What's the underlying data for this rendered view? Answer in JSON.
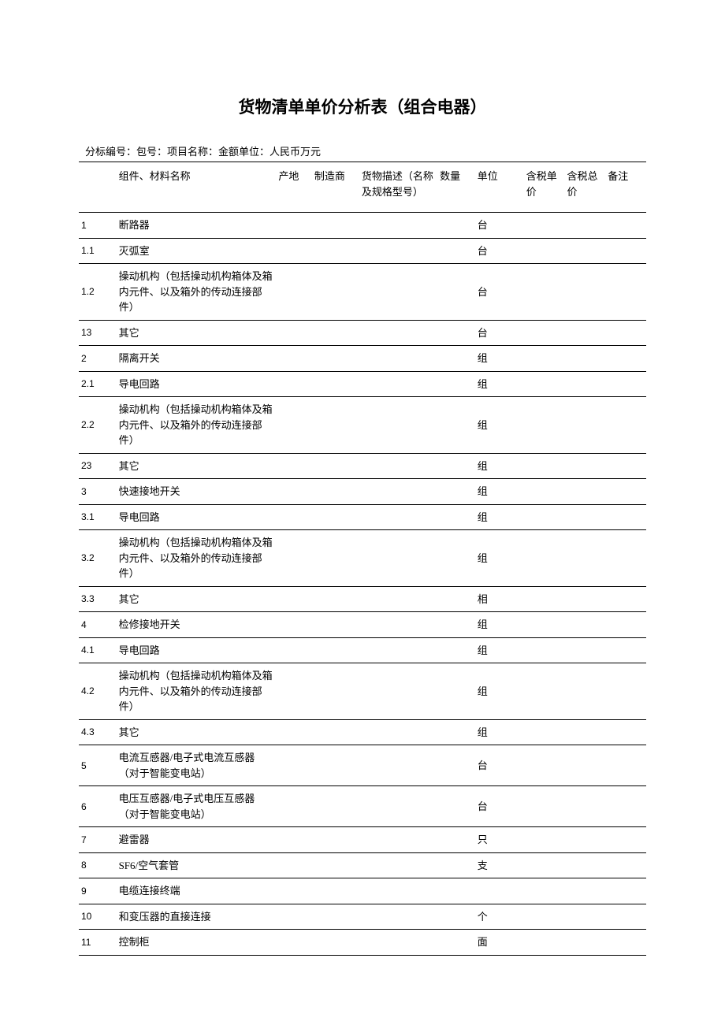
{
  "title": "货物清单单价分析表（组合电器）",
  "subtitle": "分标编号：包号：项目名称：金额单位：人民币万元",
  "columns": [
    "",
    "组件、材料名称",
    "产地",
    "制造商",
    "货物描述（名称及规格型号）",
    "数量",
    "单位",
    "含税单价",
    "含税总价",
    "备注"
  ],
  "rows": [
    {
      "idx": "1",
      "name": "断路器",
      "origin": "",
      "mfr": "",
      "desc": "",
      "qty": "",
      "unit": "台",
      "unitprice": "",
      "totalprice": "",
      "remark": ""
    },
    {
      "idx": "1.1",
      "name": "灭弧室",
      "origin": "",
      "mfr": "",
      "desc": "",
      "qty": "",
      "unit": "台",
      "unitprice": "",
      "totalprice": "",
      "remark": ""
    },
    {
      "idx": "1.2",
      "name": "操动机构（包括操动机构箱体及箱内元件、以及箱外的传动连接部件）",
      "origin": "",
      "mfr": "",
      "desc": "",
      "qty": "",
      "unit": "台",
      "unitprice": "",
      "totalprice": "",
      "remark": ""
    },
    {
      "idx": "13",
      "name": "其它",
      "origin": "",
      "mfr": "",
      "desc": "",
      "qty": "",
      "unit": "台",
      "unitprice": "",
      "totalprice": "",
      "remark": ""
    },
    {
      "idx": "2",
      "name": "隔离开关",
      "origin": "",
      "mfr": "",
      "desc": "",
      "qty": "",
      "unit": "组",
      "unitprice": "",
      "totalprice": "",
      "remark": ""
    },
    {
      "idx": "2.1",
      "name": "导电回路",
      "origin": "",
      "mfr": "",
      "desc": "",
      "qty": "",
      "unit": "组",
      "unitprice": "",
      "totalprice": "",
      "remark": ""
    },
    {
      "idx": "2.2",
      "name": "操动机构（包括操动机构箱体及箱内元件、以及箱外的传动连接部件）",
      "origin": "",
      "mfr": "",
      "desc": "",
      "qty": "",
      "unit": "组",
      "unitprice": "",
      "totalprice": "",
      "remark": ""
    },
    {
      "idx": "23",
      "name": "其它",
      "origin": "",
      "mfr": "",
      "desc": "",
      "qty": "",
      "unit": "组",
      "unitprice": "",
      "totalprice": "",
      "remark": ""
    },
    {
      "idx": "3",
      "name": "快速接地开关",
      "origin": "",
      "mfr": "",
      "desc": "",
      "qty": "",
      "unit": "组",
      "unitprice": "",
      "totalprice": "",
      "remark": ""
    },
    {
      "idx": "3.1",
      "name": "导电回路",
      "origin": "",
      "mfr": "",
      "desc": "",
      "qty": "",
      "unit": "组",
      "unitprice": "",
      "totalprice": "",
      "remark": ""
    },
    {
      "idx": "3.2",
      "name": "操动机构（包括操动机构箱体及箱内元件、以及箱外的传动连接部件）",
      "origin": "",
      "mfr": "",
      "desc": "",
      "qty": "",
      "unit": "组",
      "unitprice": "",
      "totalprice": "",
      "remark": ""
    },
    {
      "idx": "3.3",
      "name": "其它",
      "origin": "",
      "mfr": "",
      "desc": "",
      "qty": "",
      "unit": "相",
      "unitprice": "",
      "totalprice": "",
      "remark": ""
    },
    {
      "idx": "4",
      "name": "检修接地开关",
      "origin": "",
      "mfr": "",
      "desc": "",
      "qty": "",
      "unit": "组",
      "unitprice": "",
      "totalprice": "",
      "remark": ""
    },
    {
      "idx": "4.1",
      "name": "导电回路",
      "origin": "",
      "mfr": "",
      "desc": "",
      "qty": "",
      "unit": "组",
      "unitprice": "",
      "totalprice": "",
      "remark": ""
    },
    {
      "idx": "4.2",
      "name": "操动机构（包括操动机构箱体及箱内元件、以及箱外的传动连接部件）",
      "origin": "",
      "mfr": "",
      "desc": "",
      "qty": "",
      "unit": "组",
      "unitprice": "",
      "totalprice": "",
      "remark": ""
    },
    {
      "idx": "4.3",
      "name": "其它",
      "origin": "",
      "mfr": "",
      "desc": "",
      "qty": "",
      "unit": "组",
      "unitprice": "",
      "totalprice": "",
      "remark": ""
    },
    {
      "idx": "5",
      "name": "电流互感器/电子式电流互感器（对于智能变电站）",
      "origin": "",
      "mfr": "",
      "desc": "",
      "qty": "",
      "unit": "台",
      "unitprice": "",
      "totalprice": "",
      "remark": ""
    },
    {
      "idx": "6",
      "name": "电压互感器/电子式电压互感器（对于智能变电站）",
      "origin": "",
      "mfr": "",
      "desc": "",
      "qty": "",
      "unit": "台",
      "unitprice": "",
      "totalprice": "",
      "remark": ""
    },
    {
      "idx": "7",
      "name": "避雷器",
      "origin": "",
      "mfr": "",
      "desc": "",
      "qty": "",
      "unit": "只",
      "unitprice": "",
      "totalprice": "",
      "remark": ""
    },
    {
      "idx": "8",
      "name": "SF6/空气套管",
      "origin": "",
      "mfr": "",
      "desc": "",
      "qty": "",
      "unit": "支",
      "unitprice": "",
      "totalprice": "",
      "remark": ""
    },
    {
      "idx": "9",
      "name": "电缆连接终端",
      "origin": "",
      "mfr": "",
      "desc": "",
      "qty": "",
      "unit": "",
      "unitprice": "",
      "totalprice": "",
      "remark": ""
    },
    {
      "idx": "10",
      "name": "和变压器的直接连接",
      "origin": "",
      "mfr": "",
      "desc": "",
      "qty": "",
      "unit": "个",
      "unitprice": "",
      "totalprice": "",
      "remark": ""
    },
    {
      "idx": "11",
      "name": "控制柜",
      "origin": "",
      "mfr": "",
      "desc": "",
      "qty": "",
      "unit": "面",
      "unitprice": "",
      "totalprice": "",
      "remark": ""
    }
  ]
}
